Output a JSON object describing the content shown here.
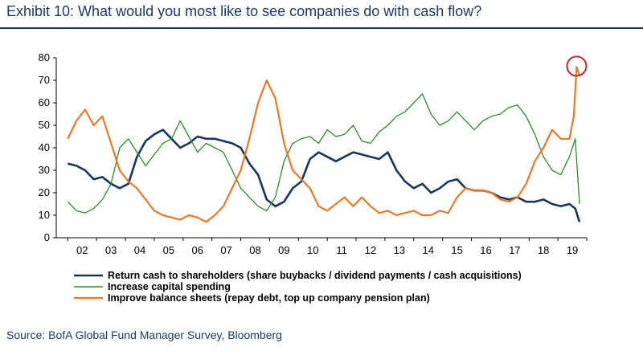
{
  "header": {
    "title": "Exhibit 10: What would you most like to see companies do with cash flow?"
  },
  "footer": {
    "source": "Source: BofA Global Fund Manager Survey, Bloomberg"
  },
  "chart_data": {
    "type": "line",
    "title": "Exhibit 10: What would you most like to see companies do with cash flow?",
    "xlabel": "",
    "ylabel": "",
    "ylim": [
      0,
      80
    ],
    "xlim": [
      2001.6,
      2020.0
    ],
    "y_ticks": [
      0,
      10,
      20,
      30,
      40,
      50,
      60,
      70,
      80
    ],
    "x_tick_labels": [
      "02",
      "03",
      "04",
      "05",
      "06",
      "07",
      "08",
      "09",
      "10",
      "11",
      "12",
      "13",
      "14",
      "15",
      "16",
      "17",
      "18",
      "19"
    ],
    "grid": false,
    "legend_position": "bottom",
    "annotation": {
      "type": "circle",
      "x": 2019.65,
      "y": 77
    },
    "series": [
      {
        "name": "Return cash to shareholders (share buybacks / dividend payments / cash acquisitions)",
        "color": "#16365c",
        "x": [
          2002.0,
          2002.3,
          2002.6,
          2002.9,
          2003.2,
          2003.5,
          2003.8,
          2004.1,
          2004.4,
          2004.7,
          2005.0,
          2005.3,
          2005.6,
          2005.9,
          2006.2,
          2006.5,
          2006.8,
          2007.1,
          2007.4,
          2007.7,
          2008.0,
          2008.3,
          2008.6,
          2008.9,
          2009.2,
          2009.5,
          2009.8,
          2010.1,
          2010.4,
          2010.7,
          2011.0,
          2011.3,
          2011.6,
          2011.9,
          2012.2,
          2012.5,
          2012.8,
          2013.1,
          2013.4,
          2013.7,
          2014.0,
          2014.3,
          2014.6,
          2014.9,
          2015.2,
          2015.5,
          2015.8,
          2016.1,
          2016.4,
          2016.7,
          2017.0,
          2017.3,
          2017.6,
          2017.9,
          2018.2,
          2018.5,
          2018.8,
          2019.1,
          2019.4,
          2019.6,
          2019.75
        ],
        "values": [
          33,
          32,
          30,
          26,
          27,
          24,
          22,
          24,
          36,
          43,
          46,
          48,
          44,
          40,
          42,
          45,
          44,
          44,
          43,
          42,
          40,
          33,
          28,
          17,
          14,
          16,
          22,
          25,
          35,
          38,
          36,
          34,
          36,
          38,
          37,
          36,
          35,
          38,
          30,
          25,
          22,
          24,
          20,
          22,
          25,
          26,
          22,
          21,
          21,
          20,
          18,
          17,
          18,
          16,
          16,
          17,
          15,
          14,
          15,
          13,
          7
        ]
      },
      {
        "name": "Increase capital spending",
        "color": "#2d8a2d",
        "x": [
          2002.0,
          2002.3,
          2002.6,
          2002.9,
          2003.2,
          2003.5,
          2003.8,
          2004.1,
          2004.4,
          2004.7,
          2005.0,
          2005.3,
          2005.6,
          2005.9,
          2006.2,
          2006.5,
          2006.8,
          2007.1,
          2007.4,
          2007.7,
          2008.0,
          2008.3,
          2008.6,
          2008.9,
          2009.2,
          2009.5,
          2009.8,
          2010.1,
          2010.4,
          2010.7,
          2011.0,
          2011.3,
          2011.6,
          2011.9,
          2012.2,
          2012.5,
          2012.8,
          2013.1,
          2013.4,
          2013.7,
          2014.0,
          2014.3,
          2014.6,
          2014.9,
          2015.2,
          2015.5,
          2015.8,
          2016.1,
          2016.4,
          2016.7,
          2017.0,
          2017.3,
          2017.6,
          2017.9,
          2018.2,
          2018.5,
          2018.8,
          2019.1,
          2019.4,
          2019.6,
          2019.75
        ],
        "values": [
          16,
          12,
          11,
          13,
          17,
          24,
          40,
          44,
          38,
          32,
          37,
          42,
          44,
          52,
          45,
          38,
          42,
          40,
          38,
          30,
          22,
          18,
          14,
          12,
          18,
          34,
          42,
          44,
          45,
          42,
          48,
          45,
          46,
          50,
          43,
          42,
          47,
          50,
          54,
          56,
          60,
          64,
          55,
          50,
          52,
          56,
          52,
          48,
          52,
          54,
          55,
          58,
          59,
          54,
          46,
          36,
          30,
          28,
          36,
          44,
          15
        ]
      },
      {
        "name": "Improve balance sheets (repay debt, top up company pension plan)",
        "color": "#e8792a",
        "x": [
          2002.0,
          2002.3,
          2002.6,
          2002.9,
          2003.2,
          2003.5,
          2003.8,
          2004.1,
          2004.4,
          2004.7,
          2005.0,
          2005.3,
          2005.6,
          2005.9,
          2006.2,
          2006.5,
          2006.8,
          2007.1,
          2007.4,
          2007.7,
          2008.0,
          2008.3,
          2008.6,
          2008.9,
          2009.2,
          2009.5,
          2009.8,
          2010.1,
          2010.4,
          2010.7,
          2011.0,
          2011.3,
          2011.6,
          2011.9,
          2012.2,
          2012.5,
          2012.8,
          2013.1,
          2013.4,
          2013.7,
          2014.0,
          2014.3,
          2014.6,
          2014.9,
          2015.2,
          2015.5,
          2015.8,
          2016.1,
          2016.4,
          2016.7,
          2017.0,
          2017.3,
          2017.6,
          2017.9,
          2018.2,
          2018.5,
          2018.8,
          2019.1,
          2019.4,
          2019.55,
          2019.65,
          2019.75
        ],
        "values": [
          44,
          52,
          57,
          50,
          54,
          42,
          30,
          25,
          22,
          17,
          12,
          10,
          9,
          8,
          10,
          9,
          7,
          10,
          14,
          22,
          30,
          44,
          60,
          70,
          62,
          42,
          30,
          26,
          22,
          14,
          12,
          15,
          18,
          14,
          18,
          14,
          11,
          12,
          10,
          11,
          12,
          10,
          10,
          12,
          11,
          18,
          22,
          21,
          21,
          20,
          17,
          16,
          18,
          24,
          34,
          40,
          48,
          44,
          44,
          54,
          76,
          72
        ]
      }
    ]
  }
}
